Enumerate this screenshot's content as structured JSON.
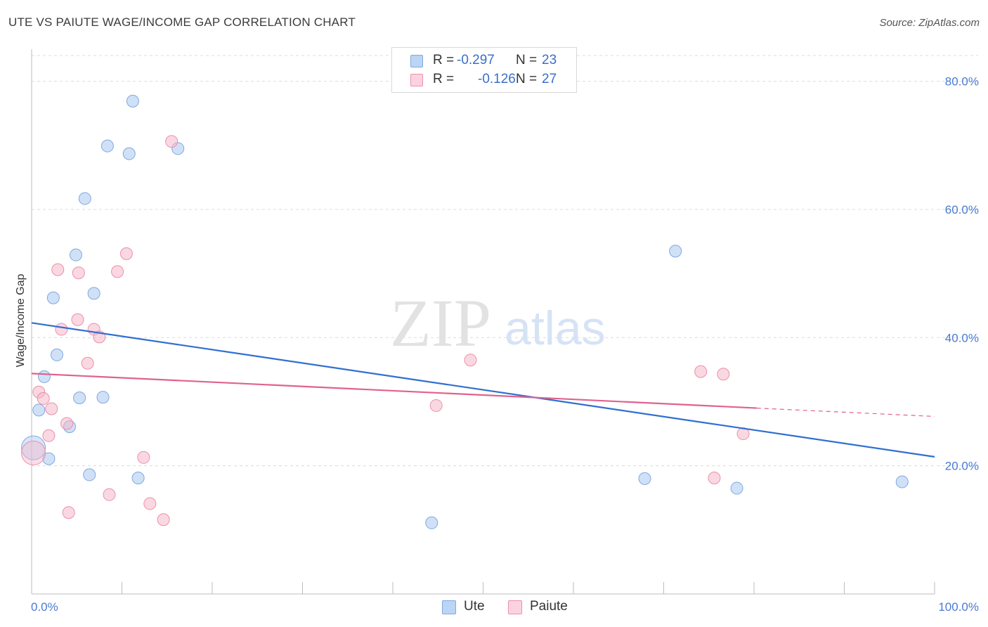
{
  "header": {
    "title": "UTE VS PAIUTE WAGE/INCOME GAP CORRELATION CHART",
    "source": "Source: ZipAtlas.com"
  },
  "legend": {
    "rows": [
      {
        "r_label": "R =",
        "r_value": "-0.297",
        "n_label": "N =",
        "n_value": "23",
        "color": "#a9c8f0"
      },
      {
        "r_label": "R =",
        "r_value": "-0.126",
        "n_label": "N =",
        "n_value": "27",
        "color": "#f6b8cb"
      }
    ]
  },
  "bottom_legend": [
    {
      "label": "Ute",
      "color": "#a9c8f0"
    },
    {
      "label": "Paiute",
      "color": "#f6b8cb"
    }
  ],
  "watermark": {
    "zip": "ZIP",
    "atlas": "atlas"
  },
  "chart_data": {
    "type": "scatter",
    "title": "UTE VS PAIUTE WAGE/INCOME GAP CORRELATION CHART",
    "xlabel": "",
    "ylabel": "Wage/Income Gap",
    "xlim": [
      0,
      100
    ],
    "ylim": [
      0,
      85
    ],
    "x_tick_labels": [
      {
        "value": 0,
        "label": "0.0%"
      },
      {
        "value": 100,
        "label": "100.0%"
      }
    ],
    "y_tick_labels": [
      {
        "value": 20,
        "label": "20.0%"
      },
      {
        "value": 40,
        "label": "40.0%"
      },
      {
        "value": 60,
        "label": "60.0%"
      },
      {
        "value": 80,
        "label": "80.0%"
      }
    ],
    "grid": true,
    "legend_position": "top-center",
    "series": [
      {
        "name": "Ute",
        "color": "#a9c8f0",
        "stroke": "#7fa8df",
        "line_color": "#2f6fd0",
        "trend": {
          "x": [
            0,
            100
          ],
          "y": [
            42.3,
            21.4
          ]
        },
        "points": [
          {
            "x": 11.2,
            "y": 76.9
          },
          {
            "x": 8.4,
            "y": 69.9
          },
          {
            "x": 10.8,
            "y": 68.7
          },
          {
            "x": 16.2,
            "y": 69.5
          },
          {
            "x": 5.9,
            "y": 61.7
          },
          {
            "x": 4.9,
            "y": 52.9
          },
          {
            "x": 2.4,
            "y": 46.2
          },
          {
            "x": 6.9,
            "y": 46.9
          },
          {
            "x": 2.8,
            "y": 37.3
          },
          {
            "x": 1.4,
            "y": 33.9
          },
          {
            "x": 5.3,
            "y": 30.6
          },
          {
            "x": 7.9,
            "y": 30.7
          },
          {
            "x": 0.8,
            "y": 28.7
          },
          {
            "x": 4.2,
            "y": 26.1
          },
          {
            "x": 1.9,
            "y": 21.1
          },
          {
            "x": 6.4,
            "y": 18.6
          },
          {
            "x": 11.8,
            "y": 18.1
          },
          {
            "x": 0.2,
            "y": 22.8
          },
          {
            "x": 71.3,
            "y": 53.5
          },
          {
            "x": 67.9,
            "y": 18.0
          },
          {
            "x": 78.1,
            "y": 16.5
          },
          {
            "x": 96.4,
            "y": 17.5
          },
          {
            "x": 44.3,
            "y": 11.1
          }
        ]
      },
      {
        "name": "Paiute",
        "color": "#f6b8cb",
        "stroke": "#ec8fab",
        "line_color": "#e0628c",
        "trend": {
          "x": [
            0,
            80.3
          ],
          "y": [
            34.4,
            29.0
          ]
        },
        "trend_extension": {
          "x": [
            80.3,
            100
          ],
          "y": [
            29.0,
            27.7
          ]
        },
        "points": [
          {
            "x": 15.5,
            "y": 70.6
          },
          {
            "x": 10.5,
            "y": 53.1
          },
          {
            "x": 2.9,
            "y": 50.6
          },
          {
            "x": 5.2,
            "y": 50.1
          },
          {
            "x": 9.5,
            "y": 50.3
          },
          {
            "x": 5.1,
            "y": 42.8
          },
          {
            "x": 3.3,
            "y": 41.3
          },
          {
            "x": 6.9,
            "y": 41.3
          },
          {
            "x": 7.5,
            "y": 40.1
          },
          {
            "x": 6.2,
            "y": 36.0
          },
          {
            "x": 0.8,
            "y": 31.5
          },
          {
            "x": 1.3,
            "y": 30.5
          },
          {
            "x": 2.2,
            "y": 28.9
          },
          {
            "x": 3.9,
            "y": 26.6
          },
          {
            "x": 1.9,
            "y": 24.7
          },
          {
            "x": 0.2,
            "y": 22.0
          },
          {
            "x": 12.4,
            "y": 21.3
          },
          {
            "x": 8.6,
            "y": 15.5
          },
          {
            "x": 13.1,
            "y": 14.1
          },
          {
            "x": 4.1,
            "y": 12.7
          },
          {
            "x": 14.6,
            "y": 11.6
          },
          {
            "x": 48.6,
            "y": 36.5
          },
          {
            "x": 44.8,
            "y": 29.4
          },
          {
            "x": 74.1,
            "y": 34.7
          },
          {
            "x": 76.6,
            "y": 34.3
          },
          {
            "x": 78.8,
            "y": 25.0
          },
          {
            "x": 75.6,
            "y": 18.1
          }
        ]
      }
    ]
  }
}
